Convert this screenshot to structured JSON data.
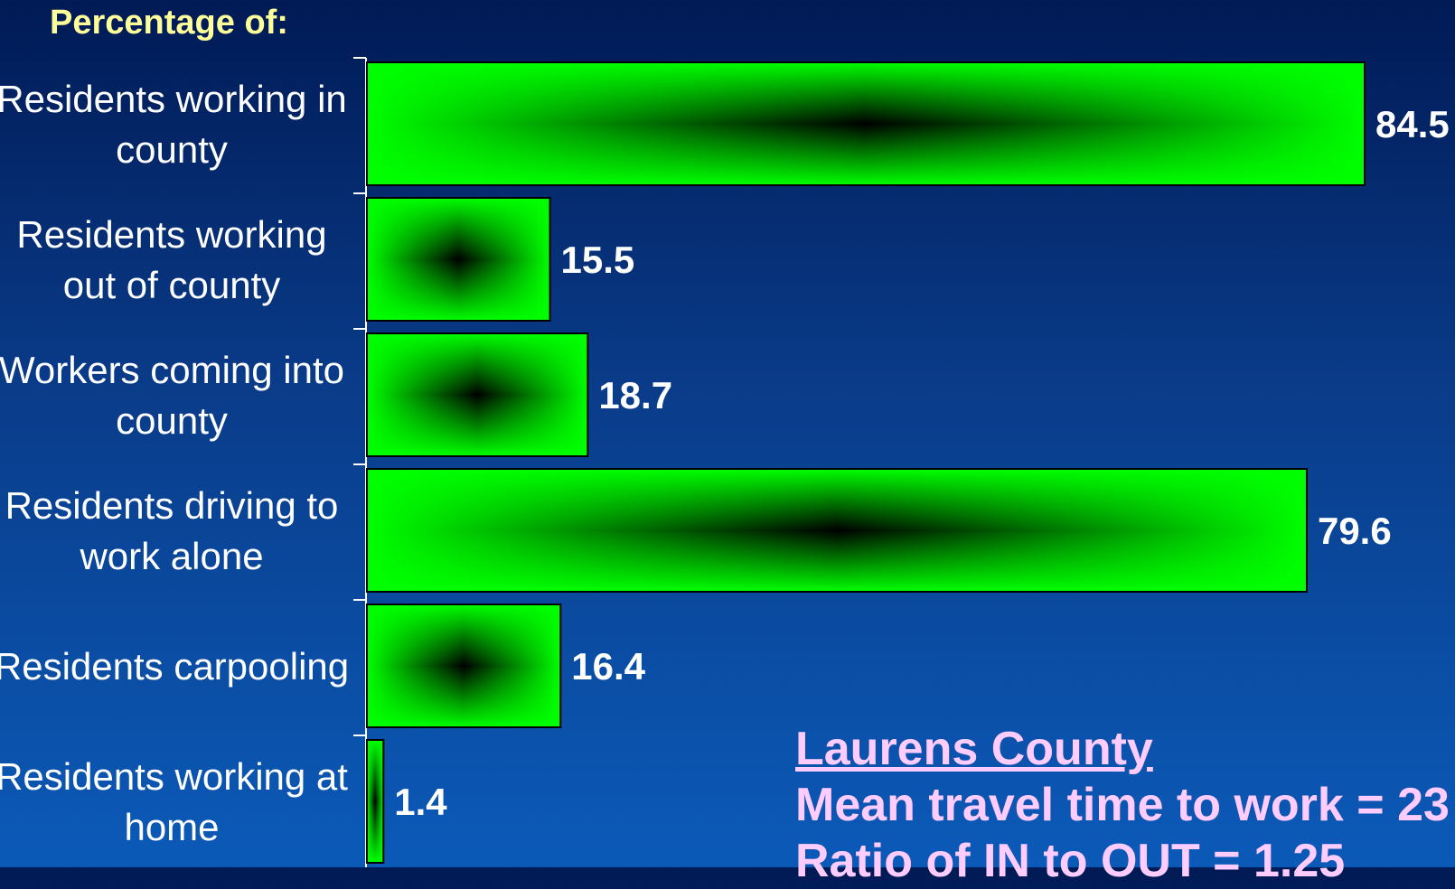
{
  "chart_data": {
    "type": "bar",
    "orientation": "horizontal",
    "title": "Percentage of:",
    "categories": [
      [
        "Residents working in",
        "county"
      ],
      [
        "Residents working",
        "out of county"
      ],
      [
        "Workers coming into",
        "county"
      ],
      [
        "Residents driving to",
        "work alone"
      ],
      [
        "Residents carpooling"
      ],
      [
        "Residents working at",
        "home"
      ]
    ],
    "values": [
      84.5,
      15.5,
      18.7,
      79.6,
      16.4,
      1.4
    ],
    "value_labels": [
      "84.5",
      "15.5",
      "18.7",
      "79.6",
      "16.4",
      "1.4"
    ],
    "xlim": [
      0,
      84.5
    ],
    "bar_color": "#00ff00",
    "bar_center_color": "#000000",
    "grid": false
  },
  "info": {
    "county": "Laurens County",
    "line1": "Mean travel time to work = 23",
    "line2": "Ratio of IN to OUT = 1.25"
  },
  "colors": {
    "title": "#ffff99",
    "info_text": "#ffccff",
    "labels": "#ffffff"
  }
}
